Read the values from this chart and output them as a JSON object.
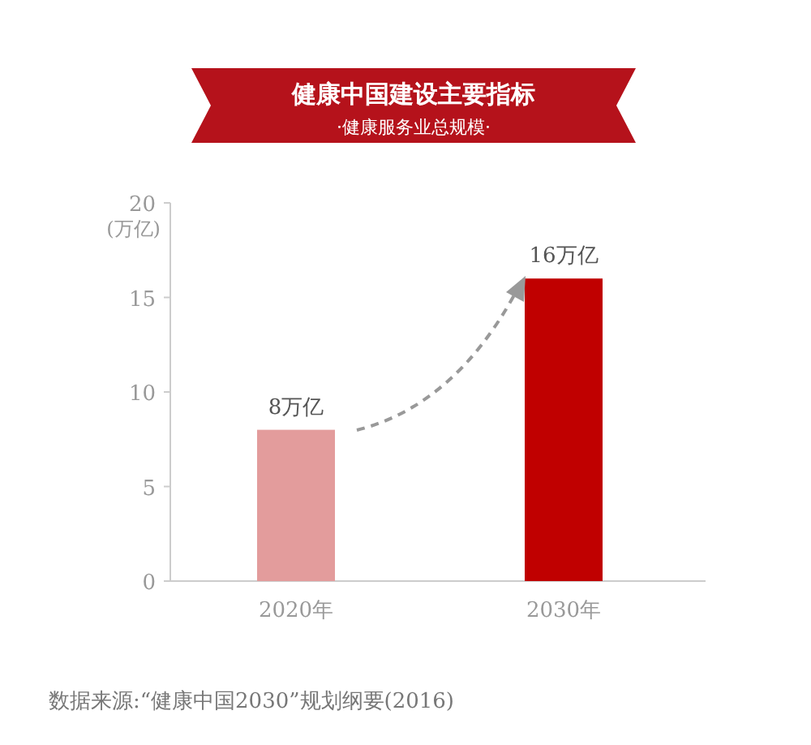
{
  "chart_data": {
    "type": "bar",
    "title": "健康中国建设主要指标",
    "subtitle": "·健康服务业总规模·",
    "ylabel": "(万亿)",
    "categories": [
      "2020年",
      "2030年"
    ],
    "values": [
      8,
      16
    ],
    "colors": [
      "#e39c9c",
      "#c00000"
    ],
    "value_labels": [
      "8万亿",
      "16万亿"
    ],
    "ylim": [
      0,
      20
    ],
    "yticks": [
      0,
      5,
      10,
      15,
      20
    ],
    "grid": false,
    "annotations": [
      "数据来源:“健康中国2030”规划纲要(2016)"
    ]
  }
}
